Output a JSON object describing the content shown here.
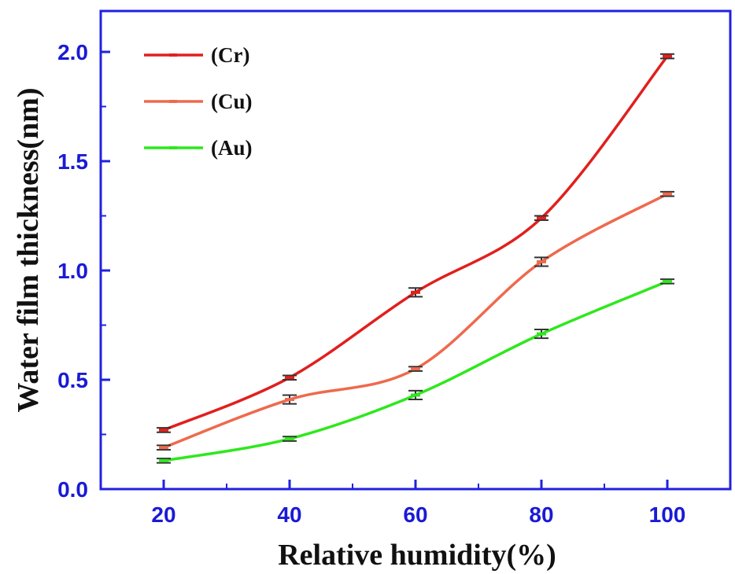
{
  "chart_data": {
    "type": "line",
    "title": "",
    "xlabel": "Relative humidity(%)",
    "ylabel": "Water film thickness(nm)",
    "x": [
      20,
      40,
      60,
      80,
      100
    ],
    "xlim": [
      10,
      110
    ],
    "ylim": [
      0,
      2.0
    ],
    "x_ticks": [
      "20",
      "40",
      "60",
      "80",
      "100"
    ],
    "y_ticks": [
      "0.0",
      "0.5",
      "1.0",
      "1.5",
      "2.0"
    ],
    "grid": false,
    "legend_position": "top-left",
    "series": [
      {
        "name": "(Cr)",
        "color": "#e0201e",
        "values": [
          0.27,
          0.51,
          0.9,
          1.24,
          1.98
        ],
        "errors": [
          0.01,
          0.01,
          0.02,
          0.01,
          0.01
        ]
      },
      {
        "name": "(Cu)",
        "color": "#ee6a4c",
        "values": [
          0.19,
          0.41,
          0.55,
          1.04,
          1.35
        ],
        "errors": [
          0.01,
          0.02,
          0.01,
          0.02,
          0.01
        ]
      },
      {
        "name": "(Au)",
        "color": "#2ee81c",
        "values": [
          0.13,
          0.23,
          0.43,
          0.71,
          0.95
        ],
        "errors": [
          0.01,
          0.01,
          0.02,
          0.02,
          0.01
        ]
      }
    ]
  }
}
